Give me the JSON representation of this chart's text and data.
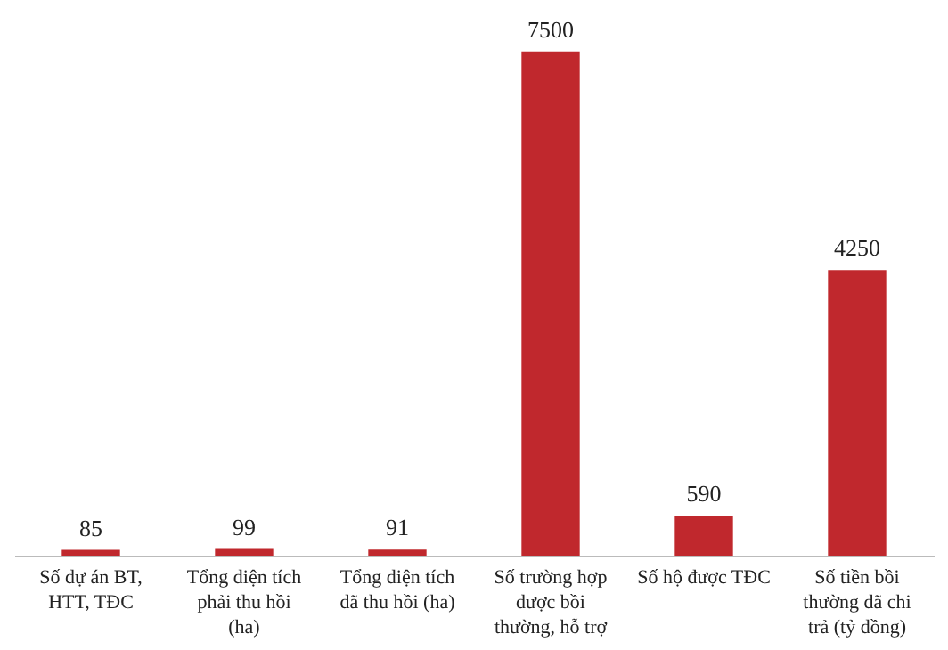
{
  "chart_data": {
    "type": "bar",
    "categories": [
      "Số dự án BT, HTT,  TĐC",
      "Tổng diện tích phải thu hồi (ha)",
      "Tổng diện tích đã thu hồi (ha)",
      "Số trường hợp được bồi thường, hỗ trợ",
      "Số hộ được TĐC",
      "Số tiền bồi thường đã chi trả (tỷ đồng)"
    ],
    "values": [
      85,
      99,
      91,
      7500,
      590,
      4250
    ],
    "color": "#c0282d",
    "data_labels": true
  }
}
